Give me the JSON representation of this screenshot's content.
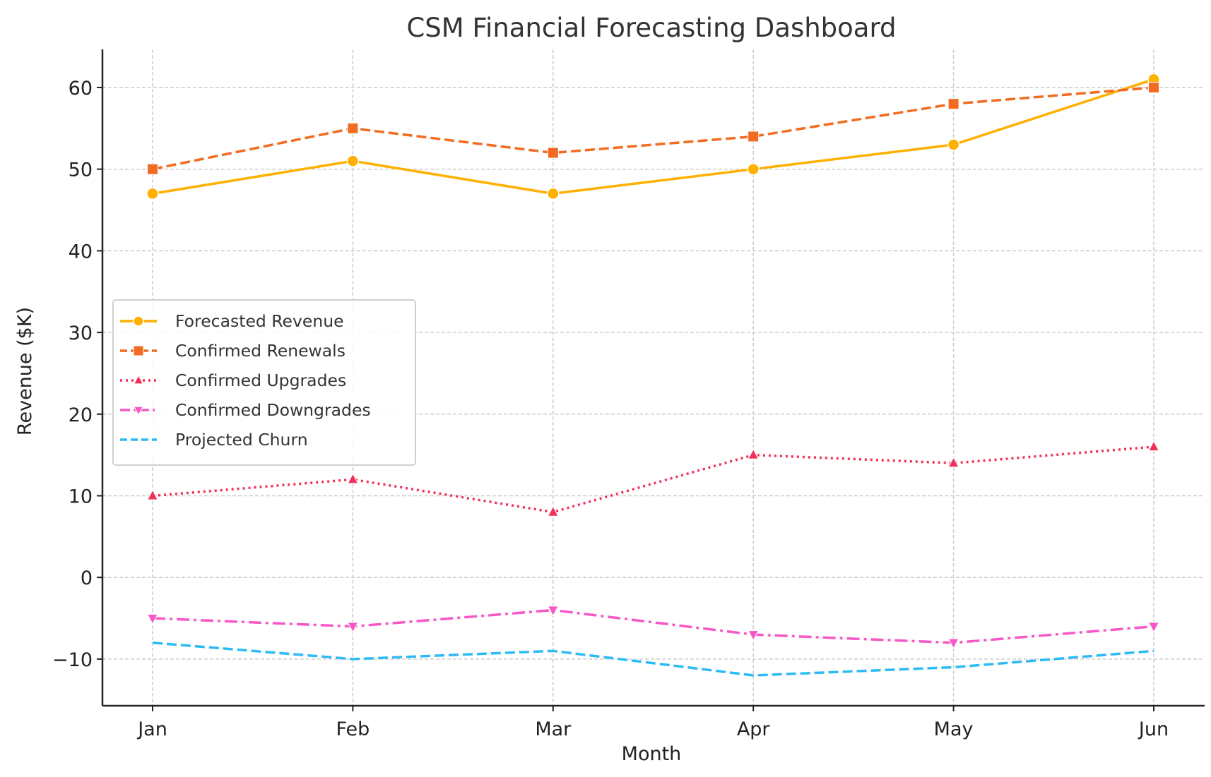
{
  "chart_data": {
    "type": "line",
    "title": "CSM Financial Forecasting Dashboard",
    "xlabel": "Month",
    "ylabel": "Revenue ($K)",
    "categories": [
      "Jan",
      "Feb",
      "Mar",
      "Apr",
      "May",
      "Jun"
    ],
    "ylim": [
      -15.5,
      64.5
    ],
    "yticks": [
      -10,
      0,
      10,
      20,
      30,
      40,
      50,
      60
    ],
    "ytick_labels": [
      "−10",
      "0",
      "10",
      "20",
      "30",
      "40",
      "50",
      "60"
    ],
    "grid": true,
    "legend_position": "center-left",
    "series": [
      {
        "name": "Forecasted Revenue",
        "values": [
          47,
          51,
          47,
          50,
          53,
          61
        ],
        "color": "#FFB000",
        "linestyle": "solid",
        "marker": "circle"
      },
      {
        "name": "Confirmed Renewals",
        "values": [
          50,
          55,
          52,
          54,
          58,
          60
        ],
        "color": "#F26B21",
        "linestyle": "dashed",
        "marker": "square"
      },
      {
        "name": "Confirmed Upgrades",
        "values": [
          10,
          12,
          8,
          15,
          14,
          16
        ],
        "color": "#F0305A",
        "linestyle": "dotted",
        "marker": "triangle-up"
      },
      {
        "name": "Confirmed Downgrades",
        "values": [
          -5,
          -6,
          -4,
          -7,
          -8,
          -6
        ],
        "color": "#F757C7",
        "linestyle": "dashdot",
        "marker": "triangle-down"
      },
      {
        "name": "Projected Churn",
        "values": [
          -8,
          -10,
          -9,
          -12,
          -11,
          -9
        ],
        "color": "#2CBBF5",
        "linestyle": "dashed",
        "marker": "none"
      }
    ]
  }
}
